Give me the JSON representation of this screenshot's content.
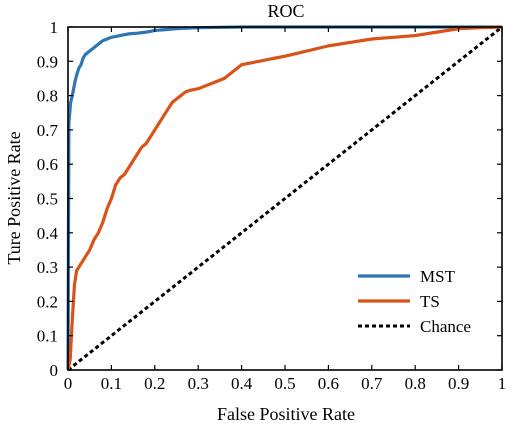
{
  "chart_data": {
    "type": "line",
    "title": "ROC",
    "xlabel": "False Positive Rate",
    "ylabel": "Ture Positive Rate",
    "xlim": [
      0,
      1
    ],
    "ylim": [
      0,
      1
    ],
    "xticks": [
      "0",
      "0.1",
      "0.2",
      "0.3",
      "0.4",
      "0.5",
      "0.6",
      "0.7",
      "0.8",
      "0.9",
      "1"
    ],
    "yticks": [
      "0",
      "0.1",
      "0.2",
      "0.3",
      "0.4",
      "0.5",
      "0.6",
      "0.7",
      "0.8",
      "0.9",
      "1"
    ],
    "grid": false,
    "legend_position": "bottom-right",
    "series": [
      {
        "name": "MST",
        "color": "#2e75b6",
        "style": "solid",
        "x": [
          0,
          0.002,
          0.004,
          0.006,
          0.008,
          0.01,
          0.013,
          0.016,
          0.02,
          0.025,
          0.03,
          0.035,
          0.04,
          0.05,
          0.06,
          0.07,
          0.08,
          0.09,
          0.1,
          0.12,
          0.14,
          0.16,
          0.18,
          0.2,
          0.22,
          0.25,
          0.3,
          0.4,
          0.5,
          0.6,
          0.8,
          1
        ],
        "y": [
          0,
          0.72,
          0.75,
          0.78,
          0.79,
          0.8,
          0.82,
          0.84,
          0.86,
          0.88,
          0.89,
          0.91,
          0.92,
          0.93,
          0.94,
          0.95,
          0.96,
          0.965,
          0.97,
          0.975,
          0.98,
          0.982,
          0.985,
          0.99,
          0.992,
          0.995,
          0.998,
          1,
          1,
          1,
          1,
          1
        ]
      },
      {
        "name": "TS",
        "color": "#d95319",
        "style": "solid",
        "x": [
          0,
          0.005,
          0.01,
          0.015,
          0.02,
          0.025,
          0.03,
          0.04,
          0.05,
          0.06,
          0.07,
          0.08,
          0.09,
          0.1,
          0.11,
          0.12,
          0.13,
          0.14,
          0.15,
          0.16,
          0.17,
          0.18,
          0.19,
          0.2,
          0.21,
          0.22,
          0.23,
          0.24,
          0.25,
          0.26,
          0.27,
          0.28,
          0.3,
          0.32,
          0.34,
          0.36,
          0.38,
          0.4,
          0.42,
          0.44,
          0.46,
          0.48,
          0.5,
          0.55,
          0.6,
          0.65,
          0.7,
          0.75,
          0.8,
          0.85,
          0.9,
          0.95,
          1
        ],
        "y": [
          0,
          0.03,
          0.15,
          0.25,
          0.29,
          0.3,
          0.31,
          0.33,
          0.35,
          0.38,
          0.4,
          0.43,
          0.47,
          0.5,
          0.54,
          0.56,
          0.57,
          0.59,
          0.61,
          0.63,
          0.65,
          0.66,
          0.68,
          0.7,
          0.72,
          0.74,
          0.76,
          0.78,
          0.79,
          0.8,
          0.81,
          0.815,
          0.82,
          0.83,
          0.84,
          0.85,
          0.87,
          0.89,
          0.895,
          0.9,
          0.905,
          0.91,
          0.915,
          0.93,
          0.945,
          0.955,
          0.965,
          0.97,
          0.975,
          0.985,
          0.995,
          0.998,
          1
        ]
      },
      {
        "name": "Chance",
        "color": "#000000",
        "style": "dashed",
        "x": [
          0,
          1
        ],
        "y": [
          0,
          1
        ]
      }
    ]
  }
}
